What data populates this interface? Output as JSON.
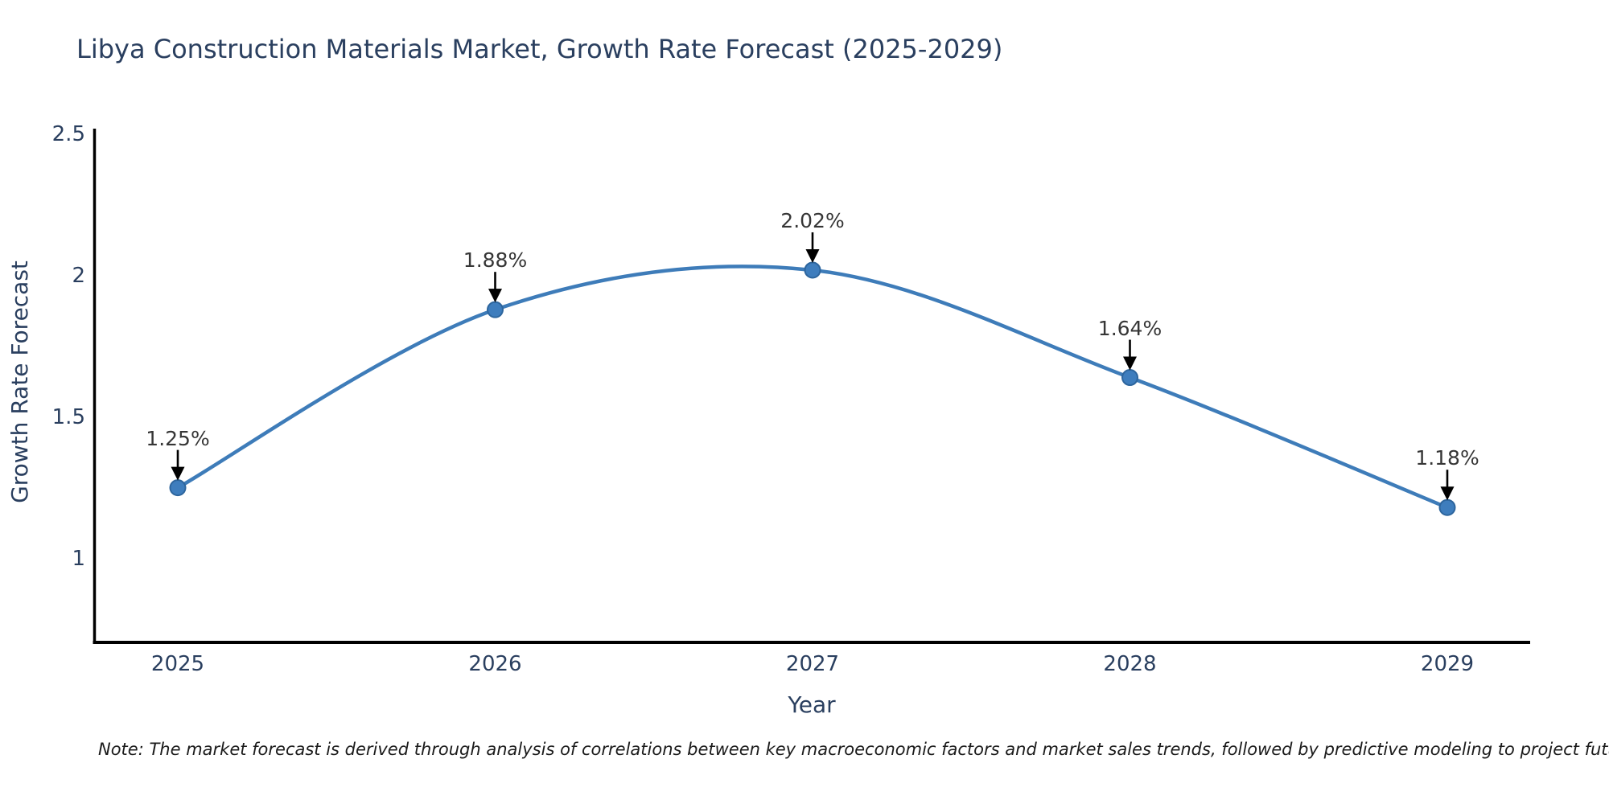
{
  "chart_data": {
    "type": "line",
    "title": "Libya Construction Materials Market, Growth Rate Forecast (2025-2029)",
    "categories": [
      "2025",
      "2026",
      "2027",
      "2028",
      "2029"
    ],
    "values": [
      1.25,
      1.88,
      2.02,
      1.64,
      1.18
    ],
    "point_labels": [
      "1.25%",
      "1.88%",
      "2.02%",
      "1.64%",
      "1.18%"
    ],
    "xlabel": "Year",
    "ylabel": "Growth Rate Forecast",
    "yticks": [
      "2.5",
      "2",
      "1.5",
      "1"
    ],
    "ytick_values": [
      2.5,
      2.0,
      1.5,
      1.0
    ],
    "ylim": [
      0.69,
      2.52
    ],
    "grid": false,
    "legend": false,
    "curve": "spline",
    "line_color": "#3e7cb9",
    "marker_color": "#3e7dbd",
    "marker_edge_color": "#2d659d",
    "annotation_arrow_color": "#000000",
    "axis_color": "#000000",
    "title_color": "#2a3f5f",
    "tick_color": "#2a3f5f",
    "point_label_color": "#363636"
  },
  "note": "Note: The market forecast is derived through analysis of correlations between key macroeconomic factors and market sales trends, followed by predictive modeling to project future sales"
}
